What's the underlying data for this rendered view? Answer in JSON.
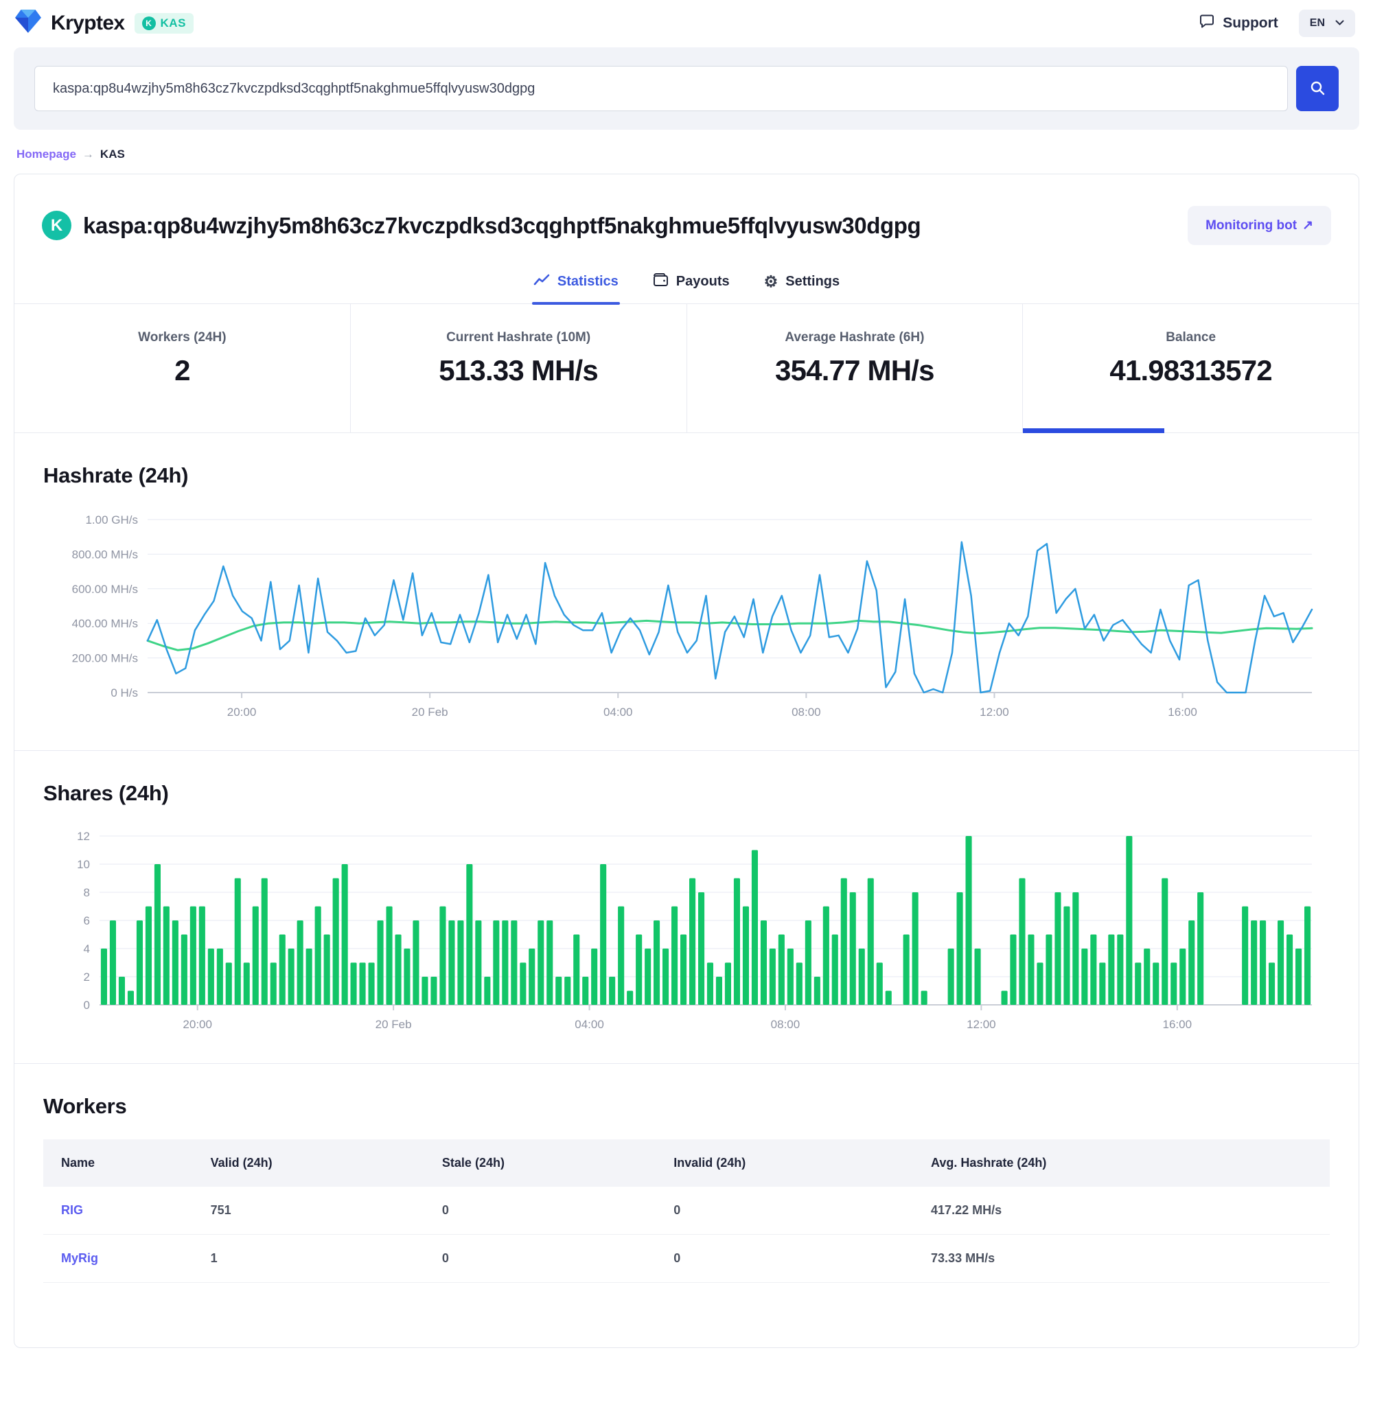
{
  "header": {
    "brand": "Kryptex",
    "coin_badge": "KAS",
    "coin_glyph": "K",
    "support_label": "Support",
    "language": "EN"
  },
  "search": {
    "value": "kaspa:qp8u4wzjhy5m8h63cz7kvczpdksd3cqghptf5nakghmue5ffqlvyusw30dgpg"
  },
  "breadcrumb": {
    "home": "Homepage",
    "separator": "→",
    "current": "KAS"
  },
  "wallet": {
    "address": "kaspa:qp8u4wzjhy5m8h63cz7kvczpdksd3cqghptf5nakghmue5ffqlvyusw30dgpg",
    "coin_glyph": "K",
    "monitoring_bot_label": "Monitoring bot",
    "external_arrow": "↗"
  },
  "tabs": [
    {
      "label": "Statistics",
      "active": true
    },
    {
      "label": "Payouts",
      "active": false
    },
    {
      "label": "Settings",
      "active": false
    }
  ],
  "stats": [
    {
      "label": "Workers (24H)",
      "value": "2"
    },
    {
      "label": "Current Hashrate (10M)",
      "value": "513.33 MH/s"
    },
    {
      "label": "Average Hashrate (6H)",
      "value": "354.77 MH/s"
    },
    {
      "label": "Balance",
      "value": "41.98313572",
      "active": true
    }
  ],
  "sections": {
    "hashrate_title": "Hashrate (24h)",
    "shares_title": "Shares (24h)",
    "workers_title": "Workers"
  },
  "colors": {
    "accent_blue": "#2b4be0",
    "tab_blue": "#3c5ae0",
    "kaspa_teal": "#14c0a6",
    "link_purple": "#8468f6",
    "button_purple": "#5d4df1",
    "line_blue": "#2e9be0",
    "line_green": "#3fd487",
    "bar_green": "#12c568"
  },
  "chart_data": [
    {
      "type": "line",
      "title": "Hashrate (24h)",
      "unit": "MH/s",
      "ylim": [
        0,
        1000
      ],
      "grid": true,
      "legend_position": "none",
      "y_ticks": [
        {
          "value": 1000,
          "label": "1.00 GH/s"
        },
        {
          "value": 800,
          "label": "800.00 MH/s"
        },
        {
          "value": 600,
          "label": "600.00 MH/s"
        },
        {
          "value": 400,
          "label": "400.00 MH/s"
        },
        {
          "value": 200,
          "label": "200.00 MH/s"
        },
        {
          "value": 0,
          "label": "0 H/s"
        }
      ],
      "span_hours": 24.75,
      "x_ticks": [
        {
          "hours": 2,
          "label": "20:00"
        },
        {
          "hours": 6,
          "label": "20 Feb"
        },
        {
          "hours": 10,
          "label": "04:00"
        },
        {
          "hours": 14,
          "label": "08:00"
        },
        {
          "hours": 18,
          "label": "12:00"
        },
        {
          "hours": 22,
          "label": "16:00"
        }
      ],
      "series": [
        {
          "name": "Current hashrate",
          "color": "#2e9be0",
          "values": [
            300,
            420,
            250,
            110,
            140,
            360,
            450,
            530,
            730,
            560,
            470,
            430,
            300,
            640,
            250,
            300,
            620,
            230,
            660,
            350,
            300,
            230,
            240,
            430,
            330,
            390,
            650,
            420,
            690,
            330,
            460,
            290,
            280,
            450,
            290,
            460,
            680,
            290,
            450,
            310,
            450,
            280,
            750,
            560,
            450,
            390,
            360,
            360,
            460,
            230,
            360,
            430,
            360,
            220,
            350,
            620,
            350,
            230,
            300,
            560,
            80,
            350,
            440,
            320,
            540,
            230,
            440,
            560,
            360,
            230,
            330,
            680,
            320,
            330,
            230,
            370,
            760,
            590,
            30,
            120,
            540,
            110,
            0,
            20,
            0,
            230,
            870,
            560,
            0,
            10,
            230,
            400,
            330,
            440,
            820,
            860,
            460,
            540,
            600,
            370,
            450,
            300,
            390,
            420,
            350,
            280,
            230,
            480,
            300,
            190,
            620,
            650,
            300,
            60,
            0,
            0,
            0,
            300,
            560,
            440,
            460,
            290,
            380,
            480
          ]
        },
        {
          "name": "Average hashrate",
          "color": "#3fd487",
          "values": [
            300,
            270,
            245,
            255,
            285,
            320,
            355,
            385,
            400,
            405,
            405,
            400,
            405,
            405,
            400,
            405,
            410,
            405,
            400,
            405,
            405,
            410,
            410,
            405,
            400,
            400,
            405,
            410,
            405,
            405,
            400,
            405,
            410,
            415,
            410,
            405,
            405,
            400,
            405,
            400,
            395,
            395,
            395,
            400,
            400,
            400,
            405,
            415,
            410,
            410,
            400,
            390,
            375,
            360,
            348,
            342,
            348,
            356,
            366,
            374,
            374,
            370,
            366,
            362,
            356,
            350,
            352,
            360,
            356,
            352,
            348,
            345,
            355,
            365,
            372,
            370,
            368,
            372
          ]
        }
      ]
    },
    {
      "type": "bar",
      "title": "Shares (24h)",
      "ylim": [
        0,
        12
      ],
      "grid": true,
      "legend_position": "none",
      "y_ticks": [
        {
          "value": 12,
          "label": "12"
        },
        {
          "value": 10,
          "label": "10"
        },
        {
          "value": 8,
          "label": "8"
        },
        {
          "value": 6,
          "label": "6"
        },
        {
          "value": 4,
          "label": "4"
        },
        {
          "value": 2,
          "label": "2"
        },
        {
          "value": 0,
          "label": "0"
        }
      ],
      "span_hours": 24.75,
      "x_ticks": [
        {
          "hours": 2,
          "label": "20:00"
        },
        {
          "hours": 6,
          "label": "20 Feb"
        },
        {
          "hours": 10,
          "label": "04:00"
        },
        {
          "hours": 14,
          "label": "08:00"
        },
        {
          "hours": 18,
          "label": "12:00"
        },
        {
          "hours": 22,
          "label": "16:00"
        }
      ],
      "bar_color": "#12c568",
      "values": [
        4,
        6,
        2,
        1,
        6,
        7,
        10,
        7,
        6,
        5,
        7,
        7,
        4,
        4,
        3,
        9,
        3,
        7,
        9,
        3,
        5,
        4,
        6,
        4,
        7,
        5,
        9,
        10,
        3,
        3,
        3,
        6,
        7,
        5,
        4,
        6,
        2,
        2,
        7,
        6,
        6,
        10,
        6,
        2,
        6,
        6,
        6,
        3,
        4,
        6,
        6,
        2,
        2,
        5,
        2,
        4,
        10,
        2,
        7,
        1,
        5,
        4,
        6,
        4,
        7,
        5,
        9,
        8,
        3,
        2,
        3,
        9,
        7,
        11,
        6,
        4,
        5,
        4,
        3,
        6,
        2,
        7,
        5,
        9,
        8,
        4,
        9,
        3,
        1,
        0,
        5,
        8,
        1,
        0,
        0,
        4,
        8,
        12,
        4,
        0,
        0,
        1,
        5,
        9,
        5,
        3,
        5,
        8,
        7,
        8,
        4,
        5,
        3,
        5,
        5,
        12,
        3,
        4,
        3,
        9,
        3,
        4,
        6,
        8,
        0,
        0,
        0,
        0,
        7,
        6,
        6,
        3,
        6,
        5,
        4,
        7
      ]
    }
  ],
  "workers_table": {
    "columns": [
      "Name",
      "Valid (24h)",
      "Stale (24h)",
      "Invalid (24h)",
      "Avg. Hashrate (24h)"
    ],
    "rows": [
      {
        "name": "RIG",
        "valid": "751",
        "stale": "0",
        "invalid": "0",
        "avg_hashrate": "417.22 MH/s"
      },
      {
        "name": "MyRig",
        "valid": "1",
        "stale": "0",
        "invalid": "0",
        "avg_hashrate": "73.33 MH/s"
      }
    ]
  }
}
